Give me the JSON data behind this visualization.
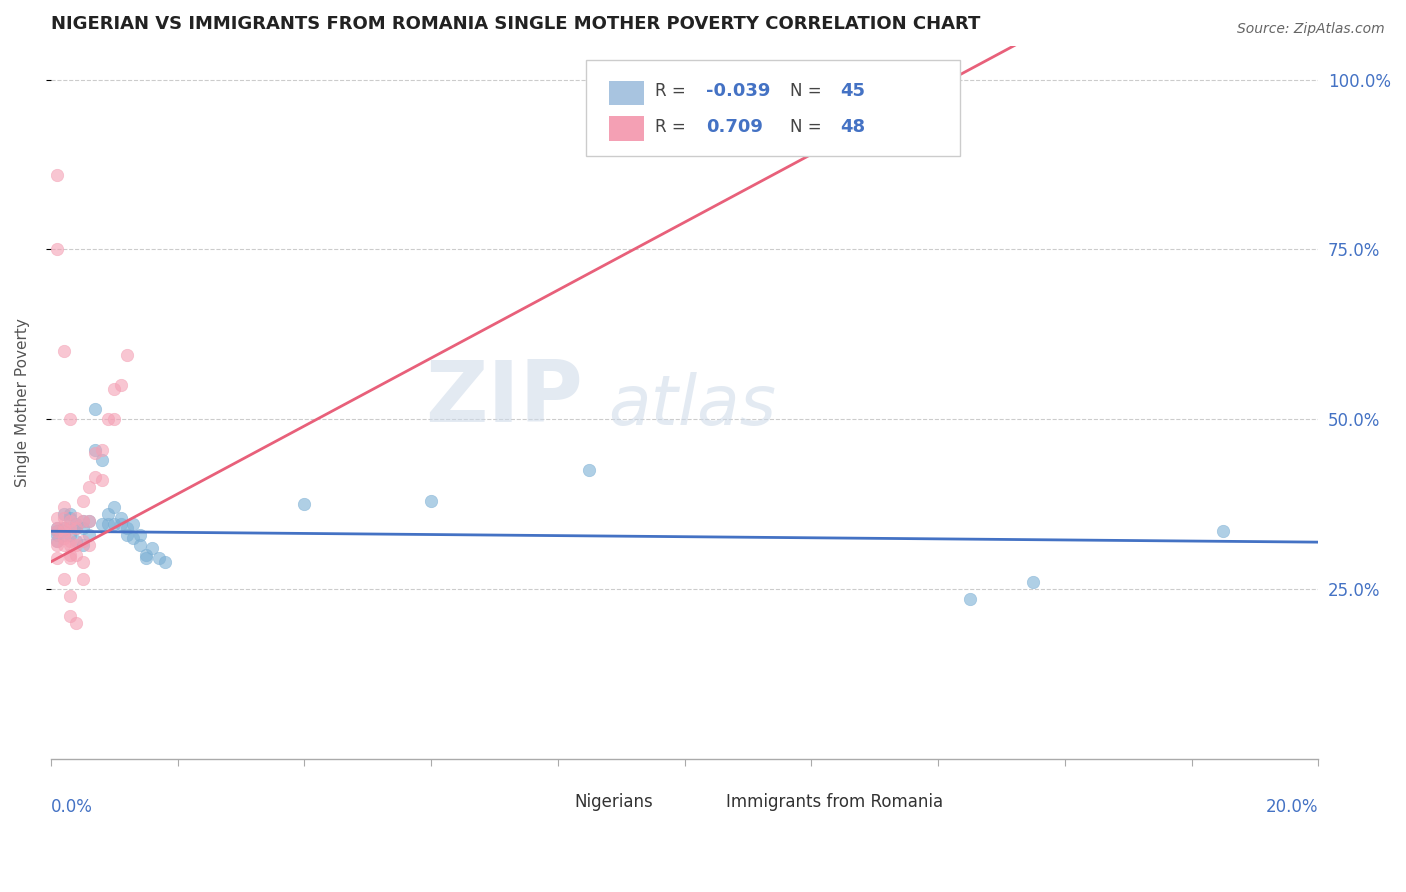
{
  "title": "NIGERIAN VS IMMIGRANTS FROM ROMANIA SINGLE MOTHER POVERTY CORRELATION CHART",
  "source": "Source: ZipAtlas.com",
  "ylabel": "Single Mother Poverty",
  "y_ticks": [
    "25.0%",
    "50.0%",
    "75.0%",
    "100.0%"
  ],
  "nigerians_color": "#7bafd4",
  "romania_color": "#f4a0b4",
  "nigeria_trend_color": "#4472c4",
  "romania_trend_color": "#e8607a",
  "watermark_zip": "ZIP",
  "watermark_atlas": "atlas",
  "R_nigeria": -0.039,
  "N_nigeria": 45,
  "R_romania": 0.709,
  "N_romania": 48,
  "xmin": 0.0,
  "xmax": 0.2,
  "ymin": 0.0,
  "ymax": 1.05,
  "nigeria_trend": {
    "slope": -0.08,
    "intercept": 0.335
  },
  "romania_trend": {
    "slope": 5.0,
    "intercept": 0.29
  },
  "nigeria_points": [
    [
      0.001,
      0.335
    ],
    [
      0.001,
      0.34
    ],
    [
      0.001,
      0.32
    ],
    [
      0.001,
      0.33
    ],
    [
      0.002,
      0.34
    ],
    [
      0.002,
      0.36
    ],
    [
      0.002,
      0.33
    ],
    [
      0.003,
      0.355
    ],
    [
      0.003,
      0.33
    ],
    [
      0.003,
      0.36
    ],
    [
      0.004,
      0.34
    ],
    [
      0.004,
      0.345
    ],
    [
      0.004,
      0.32
    ],
    [
      0.005,
      0.35
    ],
    [
      0.005,
      0.315
    ],
    [
      0.005,
      0.34
    ],
    [
      0.006,
      0.33
    ],
    [
      0.006,
      0.35
    ],
    [
      0.007,
      0.515
    ],
    [
      0.007,
      0.455
    ],
    [
      0.008,
      0.44
    ],
    [
      0.008,
      0.345
    ],
    [
      0.009,
      0.345
    ],
    [
      0.009,
      0.36
    ],
    [
      0.01,
      0.345
    ],
    [
      0.01,
      0.37
    ],
    [
      0.011,
      0.355
    ],
    [
      0.011,
      0.345
    ],
    [
      0.012,
      0.34
    ],
    [
      0.012,
      0.33
    ],
    [
      0.013,
      0.345
    ],
    [
      0.013,
      0.325
    ],
    [
      0.014,
      0.33
    ],
    [
      0.014,
      0.315
    ],
    [
      0.015,
      0.3
    ],
    [
      0.015,
      0.295
    ],
    [
      0.016,
      0.31
    ],
    [
      0.017,
      0.295
    ],
    [
      0.018,
      0.29
    ],
    [
      0.04,
      0.375
    ],
    [
      0.06,
      0.38
    ],
    [
      0.085,
      0.425
    ],
    [
      0.145,
      0.235
    ],
    [
      0.155,
      0.26
    ],
    [
      0.185,
      0.335
    ]
  ],
  "romania_points": [
    [
      0.001,
      0.335
    ],
    [
      0.001,
      0.32
    ],
    [
      0.001,
      0.295
    ],
    [
      0.001,
      0.34
    ],
    [
      0.001,
      0.315
    ],
    [
      0.001,
      0.355
    ],
    [
      0.002,
      0.335
    ],
    [
      0.002,
      0.315
    ],
    [
      0.002,
      0.34
    ],
    [
      0.002,
      0.325
    ],
    [
      0.002,
      0.355
    ],
    [
      0.002,
      0.37
    ],
    [
      0.003,
      0.34
    ],
    [
      0.003,
      0.32
    ],
    [
      0.003,
      0.315
    ],
    [
      0.003,
      0.35
    ],
    [
      0.003,
      0.3
    ],
    [
      0.003,
      0.295
    ],
    [
      0.004,
      0.34
    ],
    [
      0.004,
      0.315
    ],
    [
      0.004,
      0.3
    ],
    [
      0.004,
      0.355
    ],
    [
      0.005,
      0.38
    ],
    [
      0.005,
      0.35
    ],
    [
      0.005,
      0.32
    ],
    [
      0.005,
      0.29
    ],
    [
      0.006,
      0.4
    ],
    [
      0.006,
      0.35
    ],
    [
      0.006,
      0.315
    ],
    [
      0.007,
      0.45
    ],
    [
      0.007,
      0.415
    ],
    [
      0.008,
      0.455
    ],
    [
      0.008,
      0.41
    ],
    [
      0.009,
      0.5
    ],
    [
      0.01,
      0.545
    ],
    [
      0.01,
      0.5
    ],
    [
      0.011,
      0.55
    ],
    [
      0.012,
      0.595
    ],
    [
      0.001,
      0.75
    ],
    [
      0.001,
      0.86
    ],
    [
      0.002,
      0.6
    ],
    [
      0.003,
      0.5
    ],
    [
      0.003,
      0.24
    ],
    [
      0.003,
      0.21
    ],
    [
      0.004,
      0.2
    ],
    [
      0.002,
      0.265
    ],
    [
      0.005,
      0.265
    ],
    [
      0.13,
      0.99
    ]
  ]
}
